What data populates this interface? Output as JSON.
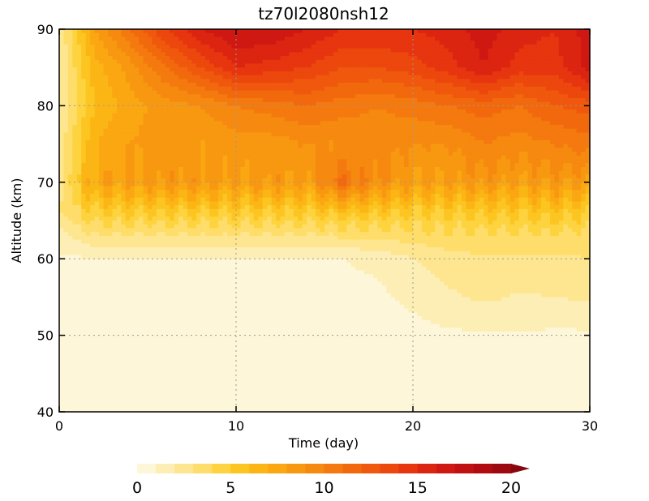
{
  "chart_data": {
    "type": "heatmap",
    "title": "tz70l2080nsh12",
    "xlabel": "Time (day)",
    "ylabel": "Altitude (km)",
    "xlim": [
      0,
      30
    ],
    "ylim": [
      40,
      90
    ],
    "xticks": [
      "0",
      "10",
      "20",
      "30"
    ],
    "yticks": [
      "40",
      "50",
      "60",
      "70",
      "80",
      "90"
    ],
    "grid": true,
    "colorbar": {
      "position": "bottom",
      "range": [
        0,
        20
      ],
      "ticks": [
        "0",
        "5",
        "10",
        "15",
        "20"
      ],
      "levels": 20,
      "extend": "max",
      "colors": [
        "#fdf6d8",
        "#fdeeb5",
        "#fde68f",
        "#fedd6a",
        "#fdd33f",
        "#fcc521",
        "#fbb615",
        "#faa712",
        "#f89810",
        "#f6890f",
        "#f4790e",
        "#f2690d",
        "#ef580d",
        "#ec470d",
        "#e6350f",
        "#dc2511",
        "#cf1812",
        "#c11012",
        "#b10b11",
        "#9e0810",
        "#8a060e"
      ]
    },
    "time_days": [
      0,
      2,
      4,
      6,
      8,
      10,
      12,
      14,
      16,
      18,
      20,
      22,
      24,
      26,
      28,
      30
    ],
    "altitude_km": [
      40,
      50,
      55,
      60,
      63,
      66,
      70,
      75,
      80,
      85,
      90
    ],
    "values": [
      [
        0.5,
        0.5,
        0.5,
        0.5,
        0.5,
        0.5,
        0.5,
        0.5,
        0.5,
        0.5,
        0.5,
        0.5,
        0.5,
        0.5,
        0.5,
        0.5
      ],
      [
        0.6,
        0.6,
        0.6,
        0.6,
        0.6,
        0.6,
        0.6,
        0.6,
        0.6,
        0.6,
        0.7,
        0.8,
        0.9,
        0.9,
        0.8,
        0.8
      ],
      [
        0.7,
        0.7,
        0.7,
        0.7,
        0.7,
        0.7,
        0.7,
        0.7,
        0.7,
        0.8,
        1.2,
        1.8,
        2.2,
        1.9,
        2.0,
        2.2
      ],
      [
        0.8,
        0.9,
        0.9,
        0.9,
        0.9,
        0.9,
        0.9,
        0.9,
        1.0,
        1.2,
        2.0,
        2.6,
        2.9,
        2.8,
        2.8,
        3.0
      ],
      [
        1.5,
        3.0,
        3.0,
        3.0,
        3.0,
        3.0,
        3.0,
        3.0,
        3.2,
        3.3,
        3.5,
        3.7,
        3.6,
        3.7,
        3.8,
        3.5
      ],
      [
        3.0,
        4.8,
        5.0,
        5.0,
        5.0,
        5.0,
        5.0,
        5.0,
        5.5,
        5.2,
        5.0,
        5.0,
        5.3,
        5.2,
        5.5,
        5.0
      ],
      [
        2.5,
        7.5,
        8.0,
        8.5,
        8.5,
        8.0,
        8.5,
        8.0,
        11.0,
        9.0,
        8.0,
        8.0,
        8.5,
        8.0,
        8.5,
        8.0
      ],
      [
        2.2,
        7.0,
        8.0,
        8.5,
        8.0,
        8.5,
        8.5,
        9.0,
        9.0,
        9.5,
        9.0,
        9.0,
        10.0,
        9.5,
        10.0,
        10.5
      ],
      [
        2.0,
        6.0,
        7.5,
        8.5,
        9.0,
        10.0,
        10.5,
        11.0,
        10.5,
        10.0,
        10.5,
        11.0,
        11.5,
        11.0,
        12.0,
        12.5
      ],
      [
        2.0,
        6.5,
        8.5,
        11.0,
        13.0,
        15.0,
        14.5,
        14.0,
        13.0,
        13.0,
        13.5,
        14.5,
        16.0,
        14.5,
        14.5,
        16.5
      ],
      [
        2.0,
        8.0,
        11.0,
        14.0,
        16.0,
        17.0,
        17.0,
        16.0,
        15.0,
        15.0,
        15.0,
        15.5,
        16.5,
        15.5,
        15.0,
        16.5
      ]
    ]
  }
}
